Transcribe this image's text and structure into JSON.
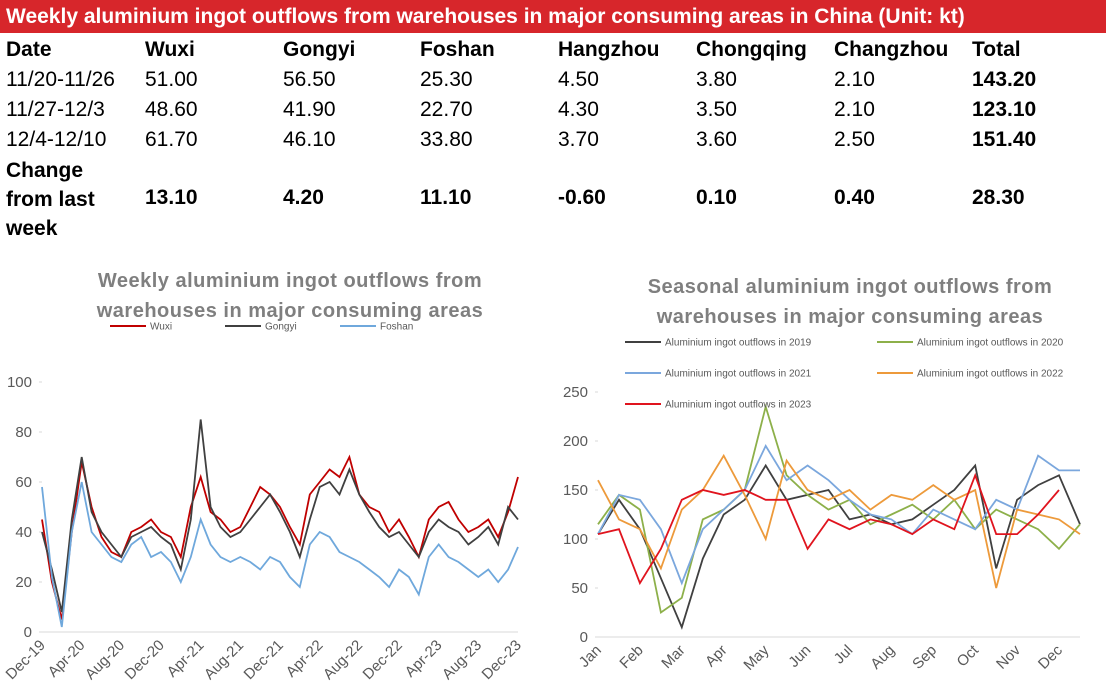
{
  "header": {
    "title": "Weekly aluminium ingot outflows from warehouses in major consuming areas in China (Unit: kt)"
  },
  "table": {
    "columns": [
      "Date",
      "Wuxi",
      "Gongyi",
      "Foshan",
      "Hangzhou",
      "Chongqing",
      "Changzhou",
      "Total"
    ],
    "rows": [
      [
        "11/20-11/26",
        "51.00",
        "56.50",
        "25.30",
        "4.50",
        "3.80",
        "2.10",
        "143.20"
      ],
      [
        "11/27-12/3",
        "48.60",
        "41.90",
        "22.70",
        "4.30",
        "3.50",
        "2.10",
        "123.10"
      ],
      [
        "12/4-12/10",
        "61.70",
        "46.10",
        "33.80",
        "3.70",
        "3.60",
        "2.50",
        "151.40"
      ],
      [
        "Change from last week",
        "13.10",
        "4.20",
        "11.10",
        "-0.60",
        "0.10",
        "0.40",
        "28.30"
      ]
    ]
  },
  "chart_data": [
    {
      "type": "line",
      "title": "Weekly aluminium ingot outflows from warehouses in major consuming areas",
      "categories": [
        "Dec-19",
        null,
        null,
        null,
        "Apr-20",
        null,
        null,
        null,
        "Aug-20",
        null,
        null,
        null,
        "Dec-20",
        null,
        null,
        null,
        "Apr-21",
        null,
        null,
        null,
        "Aug-21",
        null,
        null,
        null,
        "Dec-21",
        null,
        null,
        null,
        "Apr-22",
        null,
        null,
        null,
        "Aug-22",
        null,
        null,
        null,
        "Dec-22",
        null,
        null,
        null,
        "Apr-23",
        null,
        null,
        null,
        "Aug-23",
        null,
        null,
        null,
        "Dec-23"
      ],
      "series": [
        {
          "name": "Wuxi",
          "color": "#c00000",
          "values": [
            45,
            20,
            5,
            40,
            68,
            50,
            38,
            32,
            30,
            40,
            42,
            45,
            40,
            38,
            30,
            50,
            62,
            48,
            45,
            40,
            42,
            50,
            58,
            55,
            50,
            42,
            35,
            55,
            60,
            65,
            62,
            70,
            55,
            50,
            48,
            40,
            45,
            38,
            30,
            45,
            50,
            52,
            45,
            40,
            42,
            45,
            38,
            48,
            62
          ]
        },
        {
          "name": "Gongyi",
          "color": "#404040",
          "values": [
            40,
            25,
            8,
            45,
            70,
            48,
            40,
            35,
            30,
            38,
            40,
            42,
            38,
            35,
            25,
            45,
            85,
            50,
            42,
            38,
            40,
            45,
            50,
            55,
            48,
            40,
            30,
            45,
            58,
            60,
            55,
            65,
            55,
            48,
            42,
            38,
            40,
            35,
            30,
            40,
            45,
            42,
            40,
            35,
            38,
            42,
            35,
            50,
            45
          ]
        },
        {
          "name": "Foshan",
          "color": "#6fa8dc",
          "values": [
            58,
            22,
            2,
            40,
            60,
            40,
            35,
            30,
            28,
            35,
            38,
            30,
            32,
            28,
            20,
            30,
            45,
            35,
            30,
            28,
            30,
            28,
            25,
            30,
            28,
            22,
            18,
            35,
            40,
            38,
            32,
            30,
            28,
            25,
            22,
            18,
            25,
            22,
            15,
            30,
            35,
            30,
            28,
            25,
            22,
            25,
            20,
            25,
            34
          ]
        }
      ],
      "ylim": [
        0,
        100
      ],
      "yticks": [
        0,
        20,
        40,
        60,
        80,
        100
      ]
    },
    {
      "type": "line",
      "title": "Seasonal aluminium ingot outflows from warehouses in major consuming areas",
      "categories": [
        "Jan",
        null,
        "Feb",
        null,
        "Mar",
        null,
        "Apr",
        null,
        "May",
        null,
        "Jun",
        null,
        "Jul",
        null,
        "Aug",
        null,
        "Sep",
        null,
        "Oct",
        null,
        "Nov",
        null,
        "Dec",
        null
      ],
      "series": [
        {
          "name": "Aluminium ingot outflows in 2019",
          "color": "#404040",
          "values": [
            105,
            140,
            110,
            60,
            10,
            80,
            125,
            140,
            175,
            140,
            145,
            150,
            120,
            125,
            115,
            120,
            135,
            150,
            175,
            70,
            140,
            155,
            165,
            115
          ]
        },
        {
          "name": "Aluminium ingot outflows in 2020",
          "color": "#8db04a",
          "values": [
            115,
            145,
            130,
            25,
            40,
            120,
            130,
            150,
            235,
            165,
            145,
            130,
            140,
            115,
            125,
            135,
            120,
            140,
            110,
            130,
            120,
            110,
            90,
            115
          ]
        },
        {
          "name": "Aluminium ingot outflows in 2021",
          "color": "#7ba7dd",
          "values": [
            105,
            145,
            140,
            110,
            55,
            110,
            130,
            150,
            195,
            160,
            175,
            160,
            140,
            125,
            120,
            105,
            130,
            120,
            110,
            140,
            130,
            185,
            170,
            170
          ]
        },
        {
          "name": "Aluminium ingot outflows in 2022",
          "color": "#ed9a3b",
          "values": [
            160,
            120,
            110,
            70,
            130,
            150,
            185,
            145,
            100,
            180,
            150,
            140,
            150,
            130,
            145,
            140,
            155,
            140,
            150,
            50,
            130,
            125,
            120,
            105
          ]
        },
        {
          "name": "Aluminium ingot outflows in 2023",
          "color": "#e0141e",
          "values": [
            105,
            110,
            55,
            90,
            140,
            150,
            145,
            150,
            140,
            140,
            90,
            120,
            110,
            120,
            115,
            105,
            120,
            110,
            165,
            105,
            105,
            125,
            150,
            null
          ]
        }
      ],
      "ylim": [
        0,
        250
      ],
      "yticks": [
        0,
        50,
        100,
        150,
        200,
        250
      ]
    }
  ]
}
